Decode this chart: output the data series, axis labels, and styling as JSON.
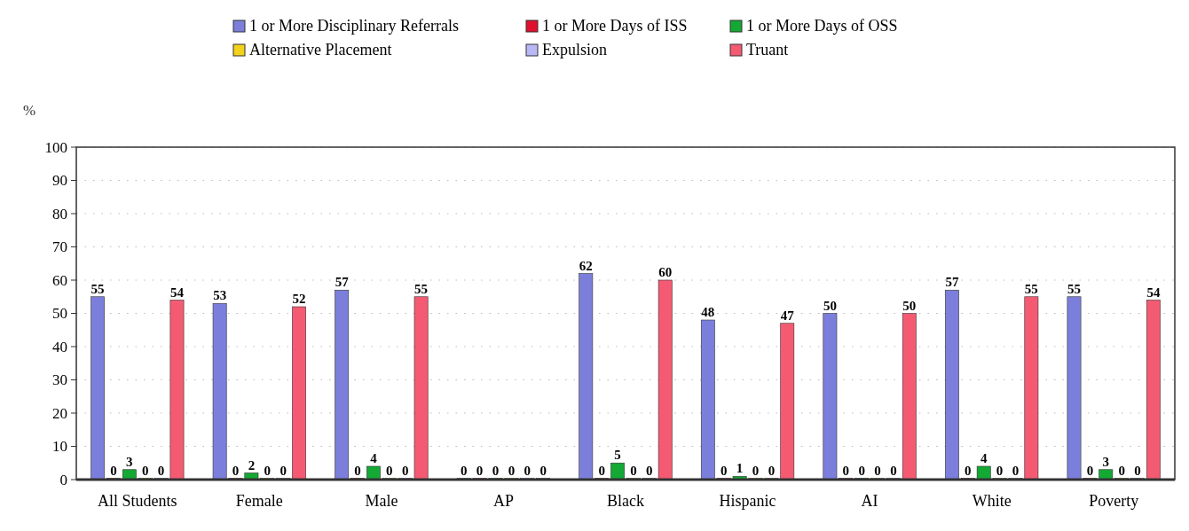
{
  "chart_data": {
    "type": "bar",
    "ylabel": "%",
    "categories": [
      "All Students",
      "Female",
      "Male",
      "AP",
      "Black",
      "Hispanic",
      "AI",
      "White",
      "Poverty"
    ],
    "series": [
      {
        "name": "1 or More Disciplinary Referrals",
        "color": "#7b7fdb",
        "values": [
          55,
          53,
          57,
          0,
          62,
          48,
          50,
          57,
          55
        ]
      },
      {
        "name": "1 or More Days of ISS",
        "color": "#e0102f",
        "values": [
          0,
          0,
          0,
          0,
          0,
          0,
          0,
          0,
          0
        ]
      },
      {
        "name": "1 or More Days of OSS",
        "color": "#14a834",
        "values": [
          3,
          2,
          4,
          0,
          5,
          1,
          0,
          4,
          3
        ]
      },
      {
        "name": "Alternative Placement",
        "color": "#f2d21b",
        "values": [
          0,
          0,
          0,
          0,
          0,
          0,
          0,
          0,
          0
        ]
      },
      {
        "name": "Expulsion",
        "color": "#b9b8f5",
        "values": [
          0,
          0,
          0,
          0,
          0,
          0,
          0,
          0,
          0
        ]
      },
      {
        "name": "Truant",
        "color": "#f45b72",
        "values": [
          54,
          52,
          55,
          0,
          60,
          47,
          50,
          55,
          54
        ]
      }
    ],
    "ylim": [
      0,
      100
    ],
    "yticks": [
      0,
      10,
      20,
      30,
      40,
      50,
      60,
      70,
      80,
      90,
      100
    ],
    "grid": "y",
    "legend": "top",
    "data_labels": true
  }
}
